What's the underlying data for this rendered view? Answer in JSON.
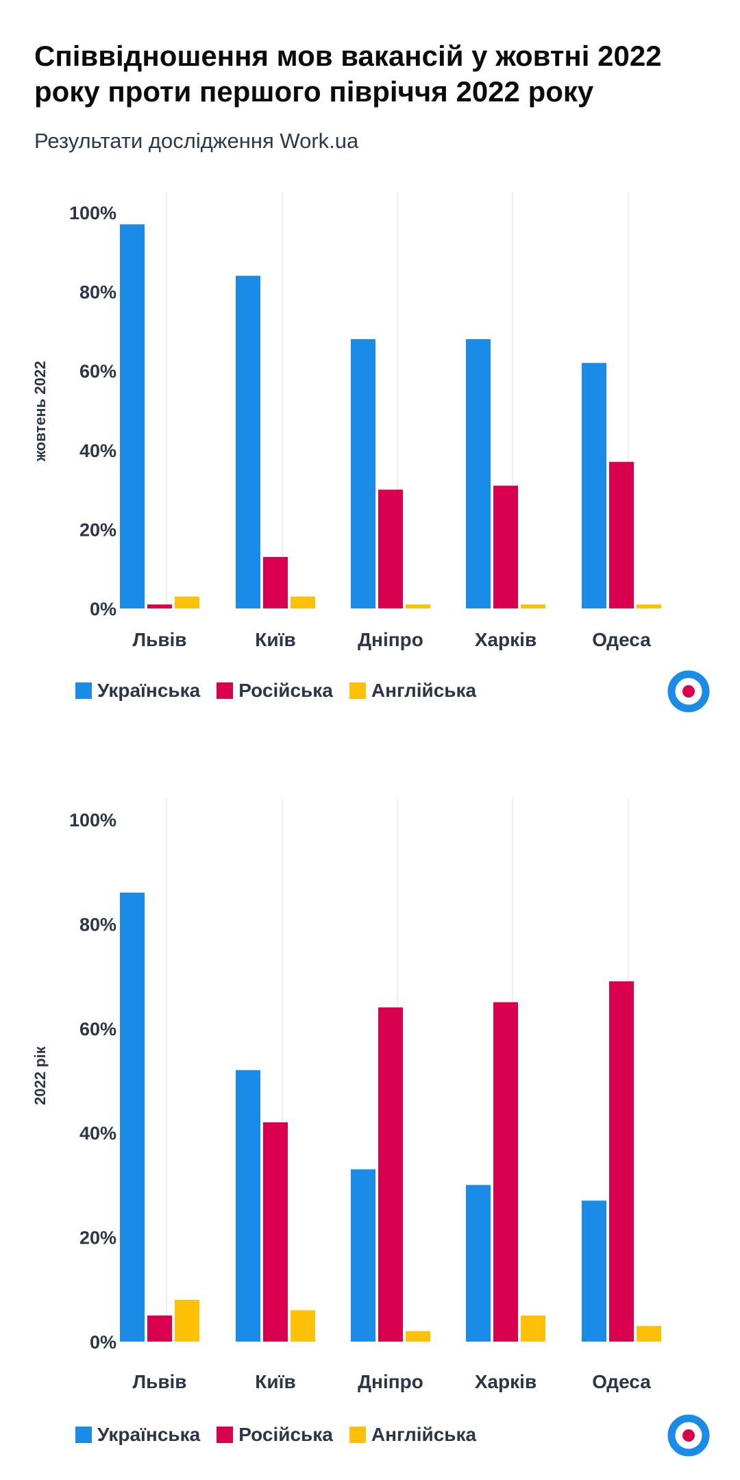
{
  "title": "Співвідношення мов вакансій у жовтні 2022 року проти першого півріччя 2022 року",
  "subtitle": "Результати дослідження Work.ua",
  "colors": {
    "ukrainian": "#1a8ce8",
    "russian": "#d9004f",
    "english": "#ffc107",
    "grid": "#e8e8e8",
    "logo_ring": "#1a8ce8",
    "logo_dot": "#d9004f"
  },
  "legend": [
    "Українська",
    "Російська",
    "Англійська"
  ],
  "logo": {
    "icon": "workua-target-logo"
  },
  "chart_data": [
    {
      "type": "bar",
      "ylabel": "жовтень 2022",
      "ylim": [
        0,
        100
      ],
      "yticks": [
        "0%",
        "20%",
        "40%",
        "60%",
        "80%",
        "100%"
      ],
      "categories": [
        "Львів",
        "Київ",
        "Дніпро",
        "Харків",
        "Одеса"
      ],
      "series": [
        {
          "name": "Українська",
          "values": [
            97,
            84,
            68,
            68,
            62
          ]
        },
        {
          "name": "Російська",
          "values": [
            1,
            13,
            30,
            31,
            37
          ]
        },
        {
          "name": "Англійська",
          "values": [
            3,
            3,
            1,
            1,
            1
          ]
        }
      ]
    },
    {
      "type": "bar",
      "ylabel": "2022 рік",
      "ylim": [
        0,
        100
      ],
      "yticks": [
        "0%",
        "20%",
        "40%",
        "60%",
        "80%",
        "100%"
      ],
      "categories": [
        "Львів",
        "Київ",
        "Дніпро",
        "Харків",
        "Одеса"
      ],
      "series": [
        {
          "name": "Українська",
          "values": [
            86,
            52,
            33,
            30,
            27
          ]
        },
        {
          "name": "Російська",
          "values": [
            5,
            42,
            64,
            65,
            69
          ]
        },
        {
          "name": "Англійська",
          "values": [
            8,
            6,
            2,
            5,
            3
          ]
        }
      ]
    }
  ]
}
